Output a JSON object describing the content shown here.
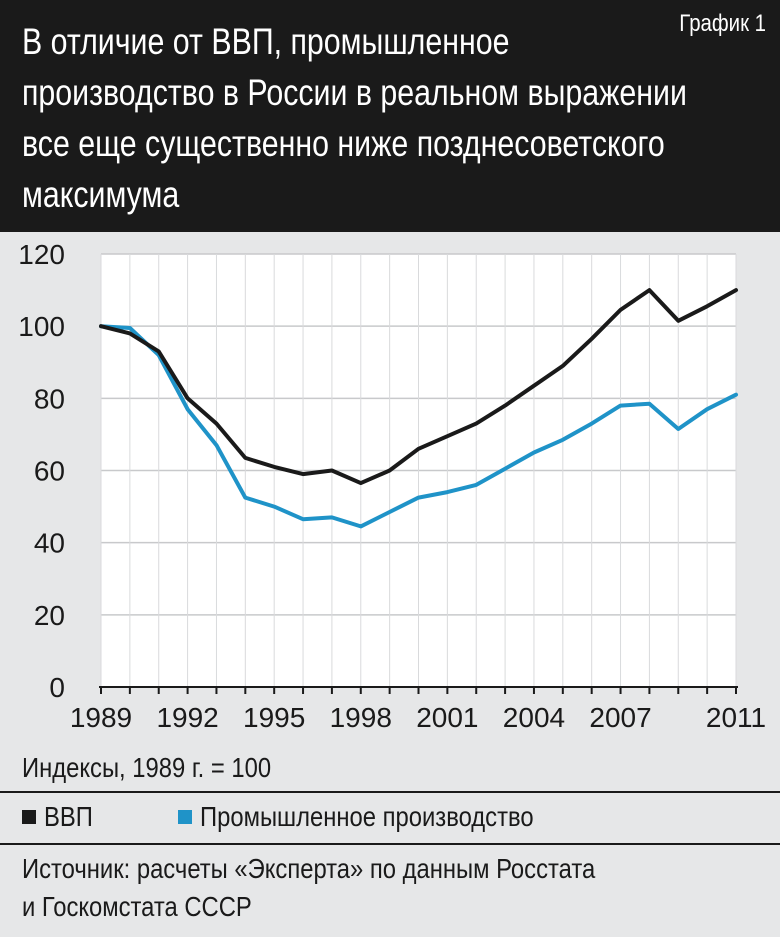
{
  "header": {
    "chart_number": "График 1",
    "title": "В отличие от ВВП, промышленное\nпроизводство в России в реальном выражении\nвсе еще существенно ниже позднесоветского\nмаксимума"
  },
  "units_note": "Индексы, 1989 г. = 100",
  "legend": [
    {
      "label": "ВВП",
      "color": "#1a1a1a"
    },
    {
      "label": "Промышленное производство",
      "color": "#1f93c8"
    }
  ],
  "source": "Источник: расчеты «Эксперта» по данным Росстата\nи Госкомстата СССР",
  "chart_data": {
    "type": "line",
    "title": "В отличие от ВВП, промышленное производство в России в реальном выражении все еще существенно ниже позднесоветского максимума",
    "xlabel": "",
    "ylabel": "Индексы, 1989 г. = 100",
    "x": [
      1989,
      1990,
      1991,
      1992,
      1993,
      1994,
      1995,
      1996,
      1997,
      1998,
      1999,
      2000,
      2001,
      2002,
      2003,
      2004,
      2005,
      2006,
      2007,
      2008,
      2009,
      2010,
      2011
    ],
    "x_ticks": [
      1989,
      1992,
      1995,
      1998,
      2001,
      2004,
      2007,
      2011
    ],
    "y_ticks": [
      0,
      20,
      40,
      60,
      80,
      100,
      120
    ],
    "xlim": [
      1989,
      2011
    ],
    "ylim": [
      0,
      120
    ],
    "grid": {
      "horizontal": true,
      "vertical": true
    },
    "series": [
      {
        "name": "ВВП",
        "color": "#1a1a1a",
        "values": [
          100,
          98,
          93,
          80,
          73,
          63.5,
          61,
          59,
          60,
          56.5,
          60,
          66,
          69.5,
          73,
          78,
          83.5,
          89,
          96.5,
          104.5,
          110,
          101.5,
          105.5,
          110
        ]
      },
      {
        "name": "Промышленное производство",
        "color": "#1f93c8",
        "values": [
          100,
          99.5,
          92,
          77,
          67,
          52.5,
          50,
          46.5,
          47,
          44.5,
          48.5,
          52.5,
          54,
          56,
          60.5,
          65,
          68.5,
          73,
          78,
          78.5,
          71.5,
          77,
          81
        ]
      }
    ]
  }
}
